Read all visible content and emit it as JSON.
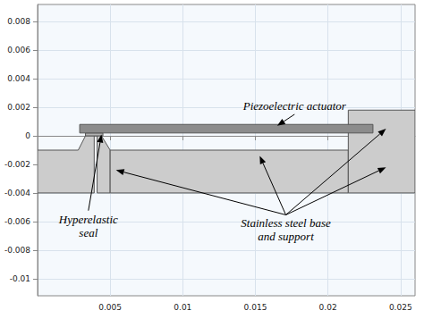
{
  "chart_data": {
    "type": "geometry",
    "xlim": [
      0,
      0.026
    ],
    "ylim": [
      -0.0112,
      0.0092
    ],
    "xticks": [
      0.005,
      0.01,
      0.015,
      0.02,
      0.025
    ],
    "yticks": [
      -0.01,
      -0.008,
      -0.006,
      -0.004,
      -0.002,
      0,
      0.002,
      0.004,
      0.006,
      0.008
    ],
    "grid": true,
    "shapes": [
      {
        "points": [
          [
            0,
            -0.004
          ],
          [
            0,
            -0.001
          ],
          [
            0.0028,
            -0.001
          ],
          [
            0.0033,
            0
          ],
          [
            0.0039,
            0
          ],
          [
            0.0039,
            -0.004
          ]
        ],
        "color": "#cccccc"
      },
      {
        "points": [
          [
            0.0041,
            -0.004
          ],
          [
            0.0041,
            0
          ],
          [
            0.0044,
            0
          ],
          [
            0.005,
            -0.001
          ],
          [
            0.005,
            -0.004
          ]
        ],
        "color": "#cccccc"
      },
      {
        "points": [
          [
            0.005,
            -0.004
          ],
          [
            0.005,
            -0.001
          ],
          [
            0.0214,
            -0.001
          ],
          [
            0.0214,
            -0.004
          ]
        ],
        "color": "#cccccc"
      },
      {
        "points": [
          [
            0.0214,
            -0.004
          ],
          [
            0.0214,
            0.0018
          ],
          [
            0.026,
            0.0018
          ],
          [
            0.026,
            -0.004
          ]
        ],
        "color": "#cccccc"
      },
      {
        "points": [
          [
            0.0033,
            0
          ],
          [
            0.0033,
            0.0002
          ],
          [
            0.0045,
            0.0002
          ],
          [
            0.0045,
            0
          ]
        ],
        "color": "#b4b4b4"
      },
      {
        "points": [
          [
            0.0029,
            0.0002
          ],
          [
            0.0029,
            0.0008
          ],
          [
            0.0231,
            0.0008
          ],
          [
            0.0231,
            0.0002
          ]
        ],
        "color": "#8c8c8c"
      }
    ],
    "annotations": [
      {
        "text": [
          "Piezoelectric actuator"
        ],
        "xytext": [
          0.0177,
          0.0021
        ],
        "targets": [
          [
            0.0165,
            0.0007
          ]
        ]
      },
      {
        "text": [
          "Hyperelastic",
          "seal"
        ],
        "xytext": [
          0.0035,
          -0.0063
        ],
        "targets": [
          [
            0.0044,
            0.0001
          ]
        ]
      },
      {
        "text": [
          "Stainless steel base",
          "and support"
        ],
        "xytext": [
          0.0171,
          -0.0066
        ],
        "targets": [
          [
            0.0054,
            -0.0024
          ],
          [
            0.0153,
            -0.0014
          ],
          [
            0.024,
            0.0005
          ],
          [
            0.024,
            -0.0022
          ]
        ]
      }
    ]
  }
}
